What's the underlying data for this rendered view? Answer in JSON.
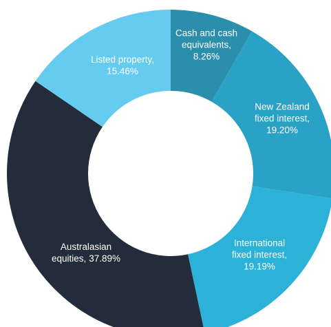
{
  "chart_data": {
    "type": "donut",
    "categories": [
      "Cash and cash equivalents,",
      "New Zealand fixed interest,",
      "International fixed interest,",
      "Australasian equities,",
      "Listed property,"
    ],
    "values": [
      8.26,
      19.2,
      19.19,
      37.89,
      15.46
    ],
    "value_labels": [
      "8.26%",
      "19.20%",
      "19.19%",
      "37.89%",
      "15.46%"
    ],
    "colors": [
      "#2b8fab",
      "#29a2c5",
      "#2cb1d8",
      "#222c3a",
      "#66ccef"
    ]
  }
}
